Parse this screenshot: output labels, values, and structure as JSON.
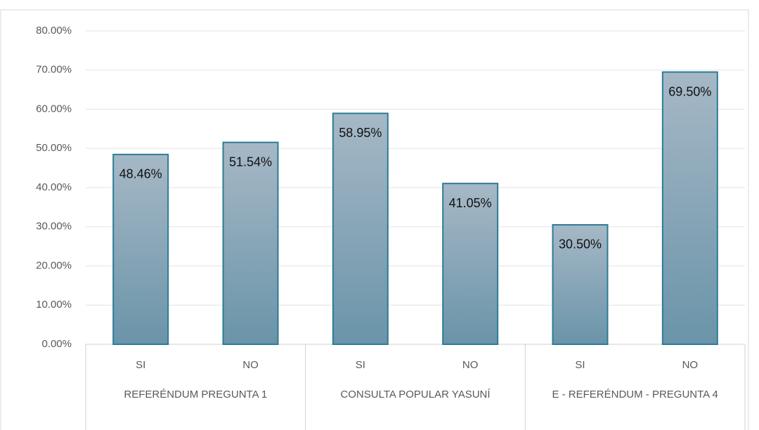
{
  "chart_data": {
    "type": "bar",
    "categories": [
      "SI",
      "NO",
      "SI",
      "NO",
      "SI",
      "NO"
    ],
    "groups": [
      "REFERÉNDUM PREGUNTA 1",
      "CONSULTA POPULAR YASUNÍ",
      "E - REFERÉNDUM - PREGUNTA 4"
    ],
    "values": [
      48.46,
      51.54,
      58.95,
      41.05,
      30.5,
      69.5
    ],
    "value_labels": [
      "48.46%",
      "51.54%",
      "58.95%",
      "41.05%",
      "30.50%",
      "69.50%"
    ],
    "color": "#7f9fb3",
    "ylim": [
      0,
      80
    ],
    "yticks": [
      {
        "value": 0,
        "label": "0.00%"
      },
      {
        "value": 10,
        "label": "10.00%"
      },
      {
        "value": 20,
        "label": "20.00%"
      },
      {
        "value": 30,
        "label": "30.00%"
      },
      {
        "value": 40,
        "label": "40.00%"
      },
      {
        "value": 50,
        "label": "50.00%"
      },
      {
        "value": 60,
        "label": "60.00%"
      },
      {
        "value": 70,
        "label": "70.00%"
      },
      {
        "value": 80,
        "label": "80.00%"
      }
    ],
    "grid": true
  }
}
